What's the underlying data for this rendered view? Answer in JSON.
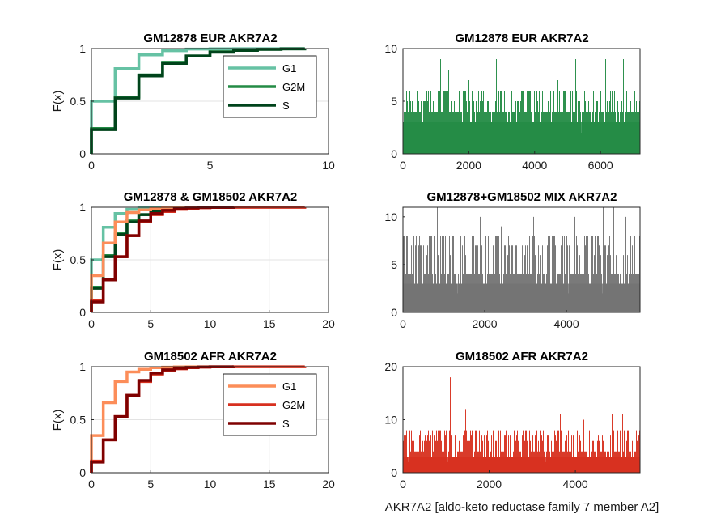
{
  "figure": {
    "xlabel": "AKR7A2 [aldo-keto reductase family 7 member A2]"
  },
  "chart_data": [
    {
      "id": "cdf_eur",
      "type": "line",
      "subtype": "ecdf-stairs",
      "title": "GM12878 EUR AKR7A2",
      "ylabel": "F(x)",
      "xlabel": "",
      "xlim": [
        0,
        10
      ],
      "ylim": [
        0,
        1
      ],
      "xticks": [
        0,
        5,
        10
      ],
      "yticks": [
        0,
        0.5,
        1
      ],
      "ytick_labels": [
        "0",
        "0.5",
        "1"
      ],
      "grid": true,
      "legend": {
        "show": true,
        "position": "top-right"
      },
      "series": [
        {
          "name": "G1",
          "color": "#66c2a4",
          "width": 3.5,
          "x": [
            0,
            1,
            2,
            3,
            4,
            5,
            6,
            7,
            8,
            9
          ],
          "y": [
            0.5,
            0.81,
            0.94,
            0.98,
            0.995,
            0.998,
            0.999,
            0.9995,
            0.9998,
            1.0
          ]
        },
        {
          "name": "G2M",
          "color": "#238b45",
          "width": 3.5,
          "x": [
            0,
            1,
            2,
            3,
            4,
            5,
            6,
            7,
            8,
            9
          ],
          "y": [
            0.24,
            0.54,
            0.75,
            0.87,
            0.93,
            0.97,
            0.985,
            0.993,
            0.997,
            1.0
          ]
        },
        {
          "name": "S",
          "color": "#00441b",
          "width": 3.5,
          "x": [
            0,
            1,
            2,
            3,
            4,
            5,
            6,
            7,
            8,
            9
          ],
          "y": [
            0.23,
            0.53,
            0.74,
            0.86,
            0.93,
            0.965,
            0.983,
            0.992,
            0.997,
            1.0
          ]
        }
      ]
    },
    {
      "id": "bar_eur",
      "type": "bar",
      "title": "GM12878 EUR AKR7A2",
      "color": "#238b45",
      "xlim": [
        0,
        7200
      ],
      "ylim": [
        0,
        10
      ],
      "xticks": [
        0,
        2000,
        4000,
        6000
      ],
      "yticks": [
        0,
        5,
        10
      ],
      "n_cells": 7200,
      "max_value": 9,
      "typical_max": 4,
      "seed": 11,
      "peaks": [
        [
          700,
          9
        ],
        [
          1150,
          9
        ],
        [
          1400,
          8
        ],
        [
          2850,
          9
        ],
        [
          5250,
          9
        ],
        [
          6150,
          9
        ],
        [
          6700,
          9
        ],
        [
          2000,
          7
        ],
        [
          4700,
          7
        ]
      ]
    },
    {
      "id": "cdf_mix",
      "type": "line",
      "subtype": "ecdf-stairs",
      "title": "GM12878 & GM18502 AKR7A2",
      "ylabel": "F(x)",
      "xlabel": "",
      "xlim": [
        0,
        20
      ],
      "ylim": [
        0,
        1
      ],
      "xticks": [
        0,
        5,
        10,
        15,
        20
      ],
      "yticks": [
        0,
        0.5,
        1
      ],
      "ytick_labels": [
        "0",
        "0.5",
        "1"
      ],
      "grid": true,
      "legend": {
        "show": false
      },
      "series": [
        {
          "name": "G1",
          "color": "#66c2a4",
          "width": 3.5,
          "x": [
            0,
            1,
            2,
            3,
            4,
            5,
            6,
            7,
            8,
            9
          ],
          "y": [
            0.5,
            0.81,
            0.94,
            0.98,
            0.995,
            0.998,
            0.999,
            0.9995,
            0.9998,
            1.0
          ]
        },
        {
          "name": "G2M",
          "color": "#238b45",
          "width": 3.5,
          "x": [
            0,
            1,
            2,
            3,
            4,
            5,
            6,
            7,
            8,
            9
          ],
          "y": [
            0.24,
            0.54,
            0.75,
            0.87,
            0.93,
            0.97,
            0.985,
            0.993,
            0.997,
            1.0
          ]
        },
        {
          "name": "S",
          "color": "#00441b",
          "width": 3.5,
          "x": [
            0,
            1,
            2,
            3,
            4,
            5,
            6,
            7,
            8,
            9
          ],
          "y": [
            0.23,
            0.53,
            0.74,
            0.86,
            0.93,
            0.965,
            0.983,
            0.992,
            0.997,
            1.0
          ]
        },
        {
          "name": "G1",
          "color": "#fc8d59",
          "width": 3.5,
          "x": [
            0,
            1,
            2,
            3,
            4,
            5,
            6,
            7,
            8,
            10,
            12
          ],
          "y": [
            0.35,
            0.66,
            0.86,
            0.95,
            0.975,
            0.99,
            0.995,
            0.998,
            0.999,
            0.9995,
            1.0
          ]
        },
        {
          "name": "G2M",
          "color": "#d7301f",
          "width": 3.5,
          "x": [
            0,
            1,
            2,
            3,
            4,
            5,
            6,
            7,
            8,
            9,
            10,
            12,
            18
          ],
          "y": [
            0.11,
            0.31,
            0.53,
            0.73,
            0.86,
            0.93,
            0.96,
            0.98,
            0.99,
            0.995,
            0.998,
            0.999,
            1.0
          ]
        },
        {
          "name": "S",
          "color": "#7f0000",
          "width": 3.5,
          "x": [
            0,
            1,
            2,
            3,
            4,
            5,
            6,
            7,
            8,
            9,
            10,
            12
          ],
          "y": [
            0.1,
            0.31,
            0.53,
            0.73,
            0.87,
            0.94,
            0.97,
            0.985,
            0.993,
            0.997,
            0.999,
            1.0
          ]
        }
      ]
    },
    {
      "id": "bar_mix",
      "type": "bar",
      "title": "GM12878+GM18502 MIX AKR7A2",
      "color": "#737373",
      "xlim": [
        0,
        5800
      ],
      "ylim": [
        0,
        11
      ],
      "xticks": [
        0,
        2000,
        4000
      ],
      "yticks": [
        0,
        5,
        10
      ],
      "n_cells": 5800,
      "max_value": 11,
      "typical_max": 6,
      "seed": 23,
      "peaks": [
        [
          30,
          8
        ],
        [
          200,
          7
        ],
        [
          850,
          11
        ],
        [
          1900,
          10
        ],
        [
          2400,
          9
        ],
        [
          3200,
          10
        ],
        [
          4200,
          10
        ],
        [
          4900,
          11
        ],
        [
          5150,
          11
        ],
        [
          5450,
          10
        ],
        [
          5650,
          9
        ]
      ]
    },
    {
      "id": "cdf_afr",
      "type": "line",
      "subtype": "ecdf-stairs",
      "title": "GM18502 AFR AKR7A2",
      "ylabel": "F(x)",
      "xlabel": "",
      "xlim": [
        0,
        20
      ],
      "ylim": [
        0,
        1
      ],
      "xticks": [
        0,
        5,
        10,
        15,
        20
      ],
      "yticks": [
        0,
        0.5,
        1
      ],
      "ytick_labels": [
        "0",
        "0.5",
        "1"
      ],
      "grid": true,
      "legend": {
        "show": true,
        "position": "top-right"
      },
      "series": [
        {
          "name": "G1",
          "color": "#fc8d59",
          "width": 3.5,
          "x": [
            0,
            1,
            2,
            3,
            4,
            5,
            6,
            7,
            8,
            10,
            12
          ],
          "y": [
            0.35,
            0.66,
            0.86,
            0.95,
            0.975,
            0.99,
            0.995,
            0.998,
            0.999,
            0.9995,
            1.0
          ]
        },
        {
          "name": "G2M",
          "color": "#d7301f",
          "width": 3.5,
          "x": [
            0,
            1,
            2,
            3,
            4,
            5,
            6,
            7,
            8,
            9,
            10,
            12,
            18
          ],
          "y": [
            0.11,
            0.31,
            0.53,
            0.73,
            0.86,
            0.93,
            0.96,
            0.98,
            0.99,
            0.995,
            0.998,
            0.999,
            1.0
          ]
        },
        {
          "name": "S",
          "color": "#7f0000",
          "width": 3.5,
          "x": [
            0,
            1,
            2,
            3,
            4,
            5,
            6,
            7,
            8,
            9,
            10,
            12
          ],
          "y": [
            0.1,
            0.31,
            0.53,
            0.73,
            0.87,
            0.94,
            0.97,
            0.985,
            0.993,
            0.997,
            0.999,
            1.0
          ]
        }
      ]
    },
    {
      "id": "bar_afr",
      "type": "bar",
      "title": "GM18502 AFR AKR7A2",
      "color": "#d7301f",
      "xlim": [
        0,
        5500
      ],
      "ylim": [
        0,
        20
      ],
      "xticks": [
        0,
        2000,
        4000
      ],
      "yticks": [
        0,
        10,
        20
      ],
      "n_cells": 5500,
      "max_value": 18,
      "typical_max": 6,
      "seed": 37,
      "peaks": [
        [
          1100,
          18
        ],
        [
          1450,
          12
        ],
        [
          2900,
          12
        ],
        [
          3650,
          11
        ],
        [
          4850,
          11
        ],
        [
          5100,
          11
        ],
        [
          450,
          10
        ],
        [
          4200,
          10
        ]
      ]
    }
  ]
}
